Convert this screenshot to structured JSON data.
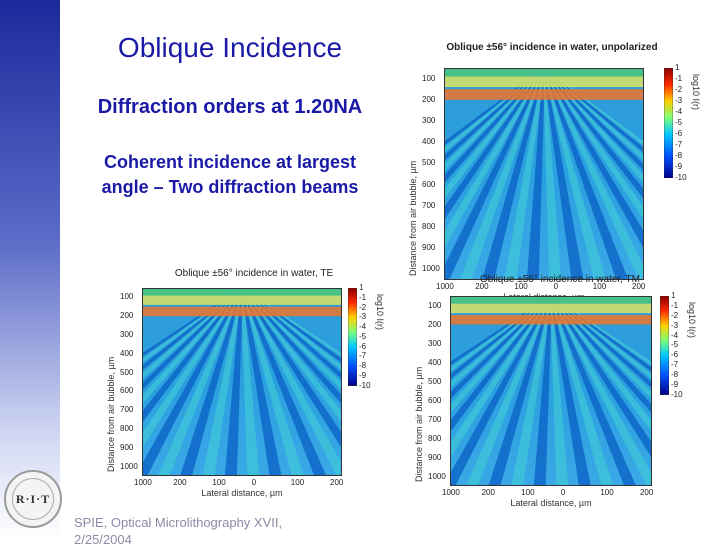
{
  "slide": {
    "title": "Oblique Incidence",
    "subtitle": "Diffraction orders at 1.20NA",
    "body_line1": "Coherent incidence at largest",
    "body_line2": "angle – Two diffraction beams",
    "footer_line1": "SPIE, Optical Microlithography XVII,",
    "footer_line2": "2/25/2004",
    "logo_text": "R·I·T"
  },
  "colors": {
    "title_blue": "#1a1aa6",
    "sidebar_top": "#1a2a9c",
    "footer_gray": "#8b8ba8"
  },
  "plots": [
    {
      "title": "Oblique ±56° incidence in water, unpolarized",
      "ylabel": "Distance from air bubble, µm",
      "xlabel": "Lateral distance, µm",
      "cbar_label": "log10 I(r)"
    },
    {
      "title": "Oblique ±56° incidence in water, TE",
      "ylabel": "Distance from air bubble, µm",
      "xlabel": "Lateral distance, µm",
      "cbar_label": "log10 I(r)"
    },
    {
      "title": "Oblique ±56° incidence in water, TM",
      "ylabel": "Distance from air bubble, µm",
      "xlabel": "Lateral distance, µm",
      "cbar_label": "log10 I(r)"
    }
  ],
  "chart_data": {
    "type": "heatmap",
    "x_ticks": [
      "1000",
      "200",
      "100",
      "0",
      "100",
      "200"
    ],
    "y_ticks": [
      "100",
      "200",
      "300",
      "400",
      "500",
      "600",
      "700",
      "800",
      "900",
      "1000"
    ],
    "cbar_ticks": [
      "1",
      "-1",
      "-2",
      "-3",
      "-4",
      "-5",
      "-6",
      "-7",
      "-8",
      "-9",
      "-10"
    ],
    "colormap": "jet"
  }
}
